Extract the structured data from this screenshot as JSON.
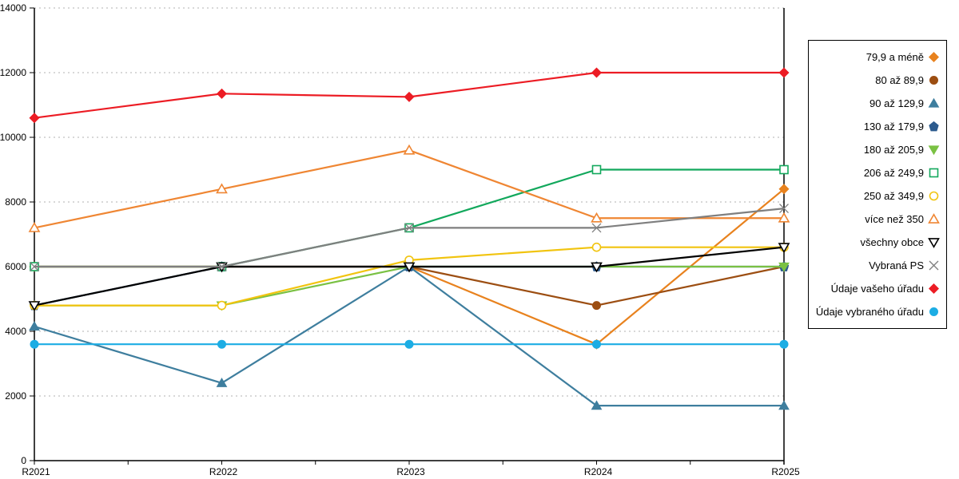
{
  "chart_data": {
    "type": "line",
    "title": "",
    "xlabel": "",
    "ylabel": "",
    "categories": [
      "R2021",
      "R2022",
      "R2023",
      "R2024",
      "R2025"
    ],
    "ylim": [
      0,
      14000
    ],
    "ytick_step": 2000,
    "grid": "horizontal-dashed",
    "gridline_color": "#b2b2b2",
    "axis_color": "#000000",
    "legend_position": "right",
    "series": [
      {
        "name": "79,9 a méně",
        "marker": "diamond",
        "fill": "filled",
        "color": "#E8821E",
        "values": [
          6000,
          6000,
          6000,
          3600,
          8400
        ]
      },
      {
        "name": "80 až 89,9",
        "marker": "circle",
        "fill": "filled",
        "color": "#9C4E12",
        "values": [
          6000,
          6000,
          6000,
          4800,
          6000
        ]
      },
      {
        "name": "90 až 129,9",
        "marker": "triangle-up",
        "fill": "filled",
        "color": "#3E7E9E",
        "values": [
          4150,
          2400,
          6000,
          1700,
          1700
        ]
      },
      {
        "name": "130 až 179,9",
        "marker": "pentagon",
        "fill": "filled",
        "color": "#2D5B8E",
        "values": [
          4800,
          6000,
          6000,
          6000,
          6000
        ]
      },
      {
        "name": "180 až 205,9",
        "marker": "triangle-down",
        "fill": "filled",
        "color": "#7AC143",
        "values": [
          4800,
          4800,
          6000,
          6000,
          6000
        ]
      },
      {
        "name": "206 až 249,9",
        "marker": "square",
        "fill": "open",
        "color": "#12A85C",
        "values": [
          6000,
          6000,
          7200,
          9000,
          9000
        ]
      },
      {
        "name": "250 až 349,9",
        "marker": "circle",
        "fill": "open",
        "color": "#F1C40F",
        "values": [
          4800,
          4800,
          6200,
          6600,
          6600
        ]
      },
      {
        "name": "více než 350",
        "marker": "triangle-up",
        "fill": "open",
        "color": "#EF8633",
        "values": [
          7200,
          8400,
          9600,
          7500,
          7500
        ]
      },
      {
        "name": "všechny obce",
        "marker": "triangle-down",
        "fill": "open",
        "color": "#000000",
        "values": [
          4800,
          6000,
          6000,
          6000,
          6600
        ]
      },
      {
        "name": "Vybraná PS",
        "marker": "x",
        "fill": "open",
        "color": "#7F7F7F",
        "values": [
          6000,
          6000,
          7200,
          7200,
          7800
        ]
      },
      {
        "name": "Údaje vašeho úřadu",
        "marker": "diamond",
        "fill": "filled",
        "color": "#EC1C24",
        "values": [
          10600,
          11350,
          11250,
          12000,
          12000
        ]
      },
      {
        "name": "Údaje vybraného úřadu",
        "marker": "circle",
        "fill": "filled",
        "color": "#1CADE4",
        "values": [
          3600,
          3600,
          3600,
          3600,
          3600
        ]
      }
    ]
  }
}
